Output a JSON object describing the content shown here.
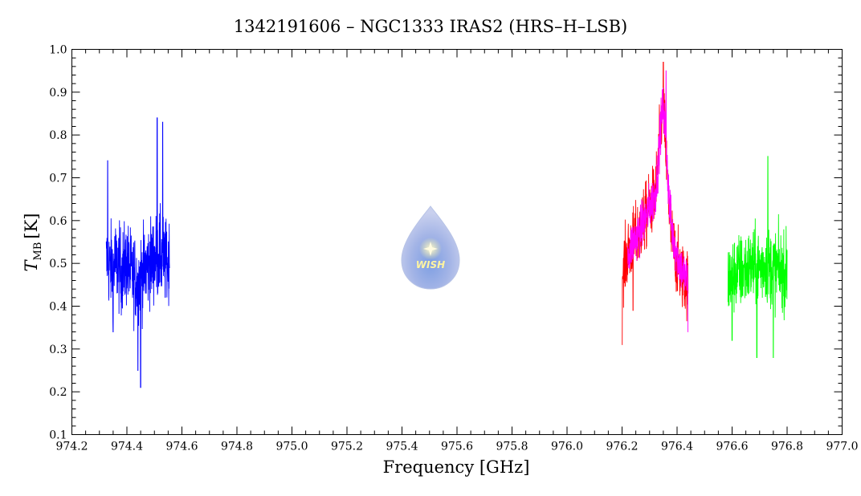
{
  "chart_data": {
    "type": "line",
    "title": "1342191606 – NGC1333 IRAS2 (HRS–H–LSB)",
    "xlabel": "Frequency [GHz]",
    "ylabel_main": "T",
    "ylabel_sub": "MB",
    "ylabel_unit": "[K]",
    "xlim": [
      974.2,
      977.0
    ],
    "ylim": [
      0.1,
      1.0
    ],
    "xticks": [
      "974.2",
      "974.4",
      "974.6",
      "974.8",
      "975.0",
      "975.2",
      "975.4",
      "975.6",
      "975.8",
      "976.0",
      "976.2",
      "976.4",
      "976.6",
      "976.8",
      "977.0"
    ],
    "yticks": [
      "0.1",
      "0.2",
      "0.3",
      "0.4",
      "0.5",
      "0.6",
      "0.7",
      "0.8",
      "0.9",
      "1.0"
    ],
    "grid": false,
    "series": [
      {
        "color": "#0000ff",
        "x": [
          974.325,
          974.34,
          974.36,
          974.38,
          974.4,
          974.42,
          974.44,
          974.46,
          974.48,
          974.5,
          974.52,
          974.54,
          974.555
        ],
        "y": [
          0.5,
          0.49,
          0.5,
          0.48,
          0.5,
          0.47,
          0.46,
          0.48,
          0.5,
          0.51,
          0.52,
          0.5,
          0.5
        ],
        "noise": 0.09,
        "extremes": [
          [
            974.33,
            0.74
          ],
          [
            974.45,
            0.21
          ],
          [
            974.51,
            0.84
          ],
          [
            974.53,
            0.83
          ],
          [
            974.44,
            0.25
          ],
          [
            974.35,
            0.34
          ]
        ]
      },
      {
        "color": "#ff0000",
        "x": [
          976.2,
          976.22,
          976.24,
          976.26,
          976.28,
          976.3,
          976.32,
          976.33,
          976.34,
          976.35,
          976.36,
          976.37,
          976.38,
          976.4,
          976.42,
          976.44
        ],
        "y": [
          0.48,
          0.52,
          0.55,
          0.57,
          0.6,
          0.63,
          0.66,
          0.72,
          0.82,
          0.87,
          0.75,
          0.64,
          0.56,
          0.5,
          0.47,
          0.45
        ],
        "noise": 0.07,
        "extremes": [
          [
            976.2,
            0.31
          ],
          [
            976.35,
            0.97
          ],
          [
            976.24,
            0.39
          ]
        ]
      },
      {
        "color": "#ff00ff",
        "x": [
          976.22,
          976.24,
          976.26,
          976.28,
          976.3,
          976.32,
          976.33,
          976.34,
          976.35,
          976.36,
          976.37,
          976.38,
          976.4,
          976.42,
          976.44
        ],
        "y": [
          0.52,
          0.55,
          0.57,
          0.6,
          0.63,
          0.66,
          0.72,
          0.82,
          0.87,
          0.78,
          0.66,
          0.58,
          0.52,
          0.48,
          0.46
        ],
        "noise": 0.05,
        "extremes": [
          [
            976.44,
            0.34
          ],
          [
            976.36,
            0.95
          ]
        ]
      },
      {
        "color": "#00ff00",
        "x": [
          976.585,
          976.6,
          976.62,
          976.64,
          976.66,
          976.68,
          976.7,
          976.72,
          976.74,
          976.76,
          976.78,
          976.8
        ],
        "y": [
          0.46,
          0.47,
          0.48,
          0.48,
          0.49,
          0.49,
          0.49,
          0.5,
          0.49,
          0.49,
          0.48,
          0.48
        ],
        "noise": 0.08,
        "extremes": [
          [
            976.73,
            0.75
          ],
          [
            976.69,
            0.28
          ],
          [
            976.75,
            0.28
          ],
          [
            976.6,
            0.32
          ]
        ]
      }
    ]
  },
  "logo": {
    "text": "WISH",
    "icon": "water-drop-star-icon"
  }
}
